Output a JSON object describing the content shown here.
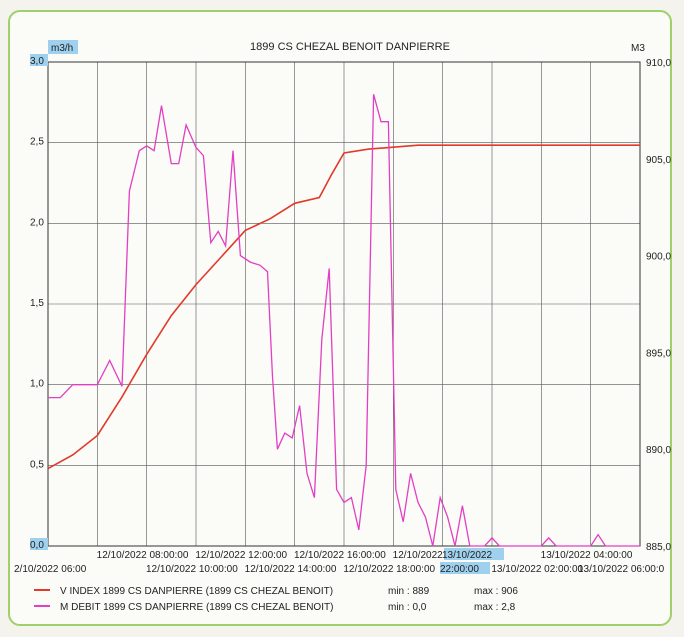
{
  "chart_data": {
    "type": "line",
    "title": "1899 CS CHEZAL BENOIT DANPIERRE",
    "y_left_unit": "m3/h",
    "y_right_unit": "M3",
    "y_left_range": [
      0,
      3
    ],
    "y_left_ticks": [
      "0,0",
      "0,5",
      "1,0",
      "1,5",
      "2,0",
      "2,5",
      "3,0"
    ],
    "y_right_range": [
      885,
      910
    ],
    "y_right_ticks": [
      "885,0",
      "890,0",
      "895,0",
      "900,0",
      "905,0",
      "910,0"
    ],
    "x_range": [
      0,
      24
    ],
    "x_ticks_row1": [
      {
        "x": 4,
        "label": "12/10/2022 08:00:00"
      },
      {
        "x": 8,
        "label": "12/10/2022 12:00:00"
      },
      {
        "x": 12,
        "label": "12/10/2022 16:00:00"
      },
      {
        "x": 16,
        "label": "12/10/2022 20:00:00"
      },
      {
        "x": 18,
        "label": "13/10/2022"
      },
      {
        "x": 22,
        "label": "13/10/2022 04:00:00"
      }
    ],
    "x_ticks_row2": [
      {
        "x": 2,
        "label": "2/10/2022 06:00"
      },
      {
        "x": 6,
        "label": "12/10/2022 10:00:00"
      },
      {
        "x": 10,
        "label": "12/10/2022 14:00:00"
      },
      {
        "x": 14,
        "label": "12/10/2022 18:00:00"
      },
      {
        "x": 18,
        "label": "22:00:00"
      },
      {
        "x": 20,
        "label": "13/10/2022 02:00:00"
      },
      {
        "x": 23.8,
        "label": "13/10/2022 06:00:0"
      }
    ],
    "grid": true,
    "legend_position": "bottom",
    "series": [
      {
        "name": "V INDEX 1899 CS DANPIERRE (1899 CS CHEZAL BENOIT)",
        "color": "#e03a2a",
        "axis": "right",
        "min_label": "min : 889",
        "max_label": "max : 906",
        "points": [
          [
            0,
            889.0
          ],
          [
            1,
            889.7
          ],
          [
            2,
            890.7
          ],
          [
            3,
            892.7
          ],
          [
            4,
            894.9
          ],
          [
            5,
            896.9
          ],
          [
            6,
            898.5
          ],
          [
            7,
            899.9
          ],
          [
            8,
            901.3
          ],
          [
            9,
            901.9
          ],
          [
            10,
            902.7
          ],
          [
            11,
            903.0
          ],
          [
            11.5,
            904.2
          ],
          [
            12,
            905.3
          ],
          [
            13,
            905.5
          ],
          [
            14,
            905.6
          ],
          [
            15,
            905.7
          ],
          [
            16,
            905.7
          ],
          [
            18,
            905.7
          ],
          [
            20,
            905.7
          ],
          [
            22,
            905.7
          ],
          [
            24,
            905.7
          ]
        ]
      },
      {
        "name": "M DEBIT 1899 CS DANPIERRE (1899 CS CHEZAL BENOIT)",
        "color": "#e23fc4",
        "axis": "left",
        "min_label": "min : 0,0",
        "max_label": "max : 2,8",
        "points": [
          [
            0,
            0.92
          ],
          [
            0.5,
            0.92
          ],
          [
            1,
            1.0
          ],
          [
            1.5,
            1.0
          ],
          [
            2,
            1.0
          ],
          [
            2.5,
            1.15
          ],
          [
            3,
            0.99
          ],
          [
            3.3,
            2.2
          ],
          [
            3.7,
            2.45
          ],
          [
            4,
            2.48
          ],
          [
            4.3,
            2.45
          ],
          [
            4.6,
            2.73
          ],
          [
            5,
            2.37
          ],
          [
            5.3,
            2.37
          ],
          [
            5.6,
            2.61
          ],
          [
            6,
            2.47
          ],
          [
            6.3,
            2.42
          ],
          [
            6.6,
            1.88
          ],
          [
            6.9,
            1.95
          ],
          [
            7.2,
            1.86
          ],
          [
            7.5,
            2.45
          ],
          [
            7.8,
            1.8
          ],
          [
            8.2,
            1.76
          ],
          [
            8.6,
            1.74
          ],
          [
            8.9,
            1.7
          ],
          [
            9.1,
            1.05
          ],
          [
            9.3,
            0.6
          ],
          [
            9.6,
            0.7
          ],
          [
            9.9,
            0.67
          ],
          [
            10.2,
            0.87
          ],
          [
            10.5,
            0.45
          ],
          [
            10.8,
            0.3
          ],
          [
            11.1,
            1.28
          ],
          [
            11.4,
            1.72
          ],
          [
            11.7,
            0.35
          ],
          [
            12,
            0.27
          ],
          [
            12.3,
            0.3
          ],
          [
            12.6,
            0.1
          ],
          [
            12.9,
            0.5
          ],
          [
            13.2,
            2.8
          ],
          [
            13.5,
            2.63
          ],
          [
            13.8,
            2.63
          ],
          [
            14.1,
            0.35
          ],
          [
            14.4,
            0.15
          ],
          [
            14.7,
            0.45
          ],
          [
            15,
            0.27
          ],
          [
            15.3,
            0.18
          ],
          [
            15.6,
            0.0
          ],
          [
            15.9,
            0.3
          ],
          [
            16.2,
            0.18
          ],
          [
            16.5,
            0.0
          ],
          [
            16.8,
            0.25
          ],
          [
            17.1,
            0.0
          ],
          [
            17.4,
            0.0
          ],
          [
            17.7,
            0.0
          ],
          [
            18,
            0.05
          ],
          [
            18.3,
            0.0
          ],
          [
            20,
            0.0
          ],
          [
            20.3,
            0.05
          ],
          [
            20.6,
            0.0
          ],
          [
            22,
            0.0
          ],
          [
            22.3,
            0.07
          ],
          [
            22.6,
            0.0
          ],
          [
            24,
            0.0
          ]
        ]
      }
    ]
  }
}
